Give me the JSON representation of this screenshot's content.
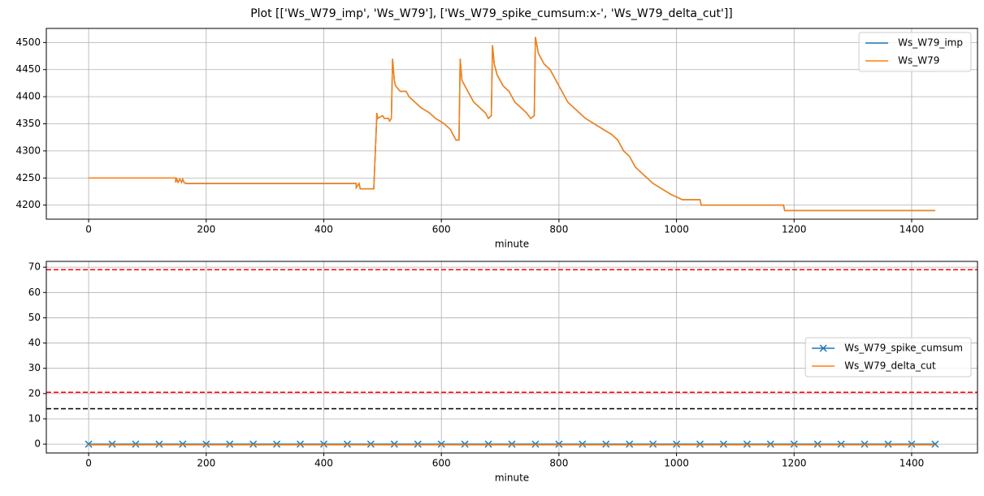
{
  "title": "Plot [['Ws_W79_imp', 'Ws_W79'], ['Ws_W79_spike_cumsum:x-', 'Ws_W79_delta_cut']]",
  "chart_data": [
    {
      "type": "line",
      "xlabel": "minute",
      "grid": true,
      "legend": "upper right",
      "xlim": [
        -72,
        1512
      ],
      "xticks": [
        0,
        200,
        400,
        600,
        800,
        1000,
        1200,
        1400
      ],
      "ylim": [
        4174,
        4526
      ],
      "yticks": [
        4200,
        4250,
        4300,
        4350,
        4400,
        4450,
        4500
      ],
      "x": [
        0,
        148,
        148,
        150,
        152,
        155,
        158,
        160,
        162,
        165,
        455,
        455,
        460,
        462,
        485,
        490,
        490,
        492,
        500,
        503,
        510,
        512,
        515,
        517,
        520,
        522,
        530,
        540,
        545,
        555,
        565,
        580,
        590,
        605,
        615,
        620,
        625,
        630,
        632,
        635,
        640,
        645,
        650,
        655,
        665,
        675,
        680,
        685,
        687,
        690,
        695,
        705,
        715,
        725,
        735,
        745,
        752,
        758,
        760,
        765,
        775,
        785,
        795,
        805,
        815,
        825,
        835,
        845,
        860,
        875,
        890,
        900,
        910,
        920,
        930,
        940,
        950,
        960,
        975,
        990,
        1010,
        1040,
        1042,
        1182,
        1184,
        1440
      ],
      "series": [
        {
          "name": "Ws_W79_imp",
          "color": "#1f77b4",
          "values": [
            4250,
            4250,
            4242,
            4248,
            4242,
            4248,
            4242,
            4248,
            4242,
            4240,
            4240,
            4232,
            4240,
            4230,
            4230,
            4360,
            4370,
            4360,
            4365,
            4360,
            4360,
            4355,
            4360,
            4470,
            4430,
            4420,
            4410,
            4410,
            4400,
            4390,
            4380,
            4370,
            4360,
            4350,
            4340,
            4330,
            4320,
            4320,
            4470,
            4430,
            4420,
            4410,
            4400,
            4390,
            4380,
            4370,
            4360,
            4365,
            4495,
            4460,
            4440,
            4420,
            4410,
            4390,
            4380,
            4370,
            4360,
            4365,
            4510,
            4480,
            4460,
            4450,
            4430,
            4410,
            4390,
            4380,
            4370,
            4360,
            4350,
            4340,
            4330,
            4320,
            4300,
            4290,
            4270,
            4260,
            4250,
            4240,
            4230,
            4220,
            4210,
            4210,
            4200,
            4200,
            4190,
            4190
          ]
        },
        {
          "name": "Ws_W79",
          "color": "#ff7f0e",
          "values": [
            4250,
            4250,
            4242,
            4248,
            4242,
            4248,
            4242,
            4248,
            4242,
            4240,
            4240,
            4232,
            4240,
            4230,
            4230,
            4360,
            4370,
            4360,
            4365,
            4360,
            4360,
            4355,
            4360,
            4470,
            4430,
            4420,
            4410,
            4410,
            4400,
            4390,
            4380,
            4370,
            4360,
            4350,
            4340,
            4330,
            4320,
            4320,
            4470,
            4430,
            4420,
            4410,
            4400,
            4390,
            4380,
            4370,
            4360,
            4365,
            4495,
            4460,
            4440,
            4420,
            4410,
            4390,
            4380,
            4370,
            4360,
            4365,
            4510,
            4480,
            4460,
            4450,
            4430,
            4410,
            4390,
            4380,
            4370,
            4360,
            4350,
            4340,
            4330,
            4320,
            4300,
            4290,
            4270,
            4260,
            4250,
            4240,
            4230,
            4220,
            4210,
            4210,
            4200,
            4200,
            4190,
            4190
          ]
        }
      ]
    },
    {
      "type": "line",
      "xlabel": "minute",
      "grid": true,
      "legend": "center right",
      "xlim": [
        -72,
        1512
      ],
      "xticks": [
        0,
        200,
        400,
        600,
        800,
        1000,
        1200,
        1400
      ],
      "ylim": [
        -3.5,
        72.3
      ],
      "yticks": [
        0,
        10,
        20,
        30,
        40,
        50,
        60,
        70
      ],
      "x": [
        0,
        40,
        80,
        120,
        160,
        200,
        240,
        280,
        320,
        360,
        400,
        440,
        480,
        520,
        560,
        600,
        640,
        680,
        720,
        760,
        800,
        840,
        880,
        920,
        960,
        1000,
        1040,
        1080,
        1120,
        1160,
        1200,
        1240,
        1280,
        1320,
        1360,
        1400,
        1440
      ],
      "series": [
        {
          "name": "Ws_W79_spike_cumsum",
          "color": "#1f77b4",
          "marker": "x",
          "values": [
            0,
            0,
            0,
            0,
            0,
            0,
            0,
            0,
            0,
            0,
            0,
            0,
            0,
            0,
            0,
            0,
            0,
            0,
            0,
            0,
            0,
            0,
            0,
            0,
            0,
            0,
            0,
            0,
            0,
            0,
            0,
            0,
            0,
            0,
            0,
            0,
            0
          ]
        },
        {
          "name": "Ws_W79_delta_cut",
          "color": "#ff7f0e",
          "values": [
            -0.3,
            -0.3,
            -0.3,
            -0.3,
            -0.3,
            -0.3,
            -0.3,
            -0.3,
            -0.3,
            -0.3,
            -0.3,
            -0.3,
            -0.3,
            -0.3,
            -0.3,
            -0.3,
            -0.3,
            -0.3,
            -0.3,
            -0.3,
            -0.3,
            -0.3,
            -0.3,
            -0.3,
            -0.3,
            -0.3,
            -0.3,
            -0.3,
            -0.3,
            -0.3,
            -0.3,
            -0.3,
            -0.3,
            -0.3,
            -0.3,
            -0.3,
            -0.3
          ]
        }
      ],
      "hlines": [
        {
          "value": 69,
          "color": "#ff0000"
        },
        {
          "value": 20.5,
          "color": "#ff0000"
        },
        {
          "value": 14,
          "color": "#000000"
        }
      ]
    }
  ]
}
